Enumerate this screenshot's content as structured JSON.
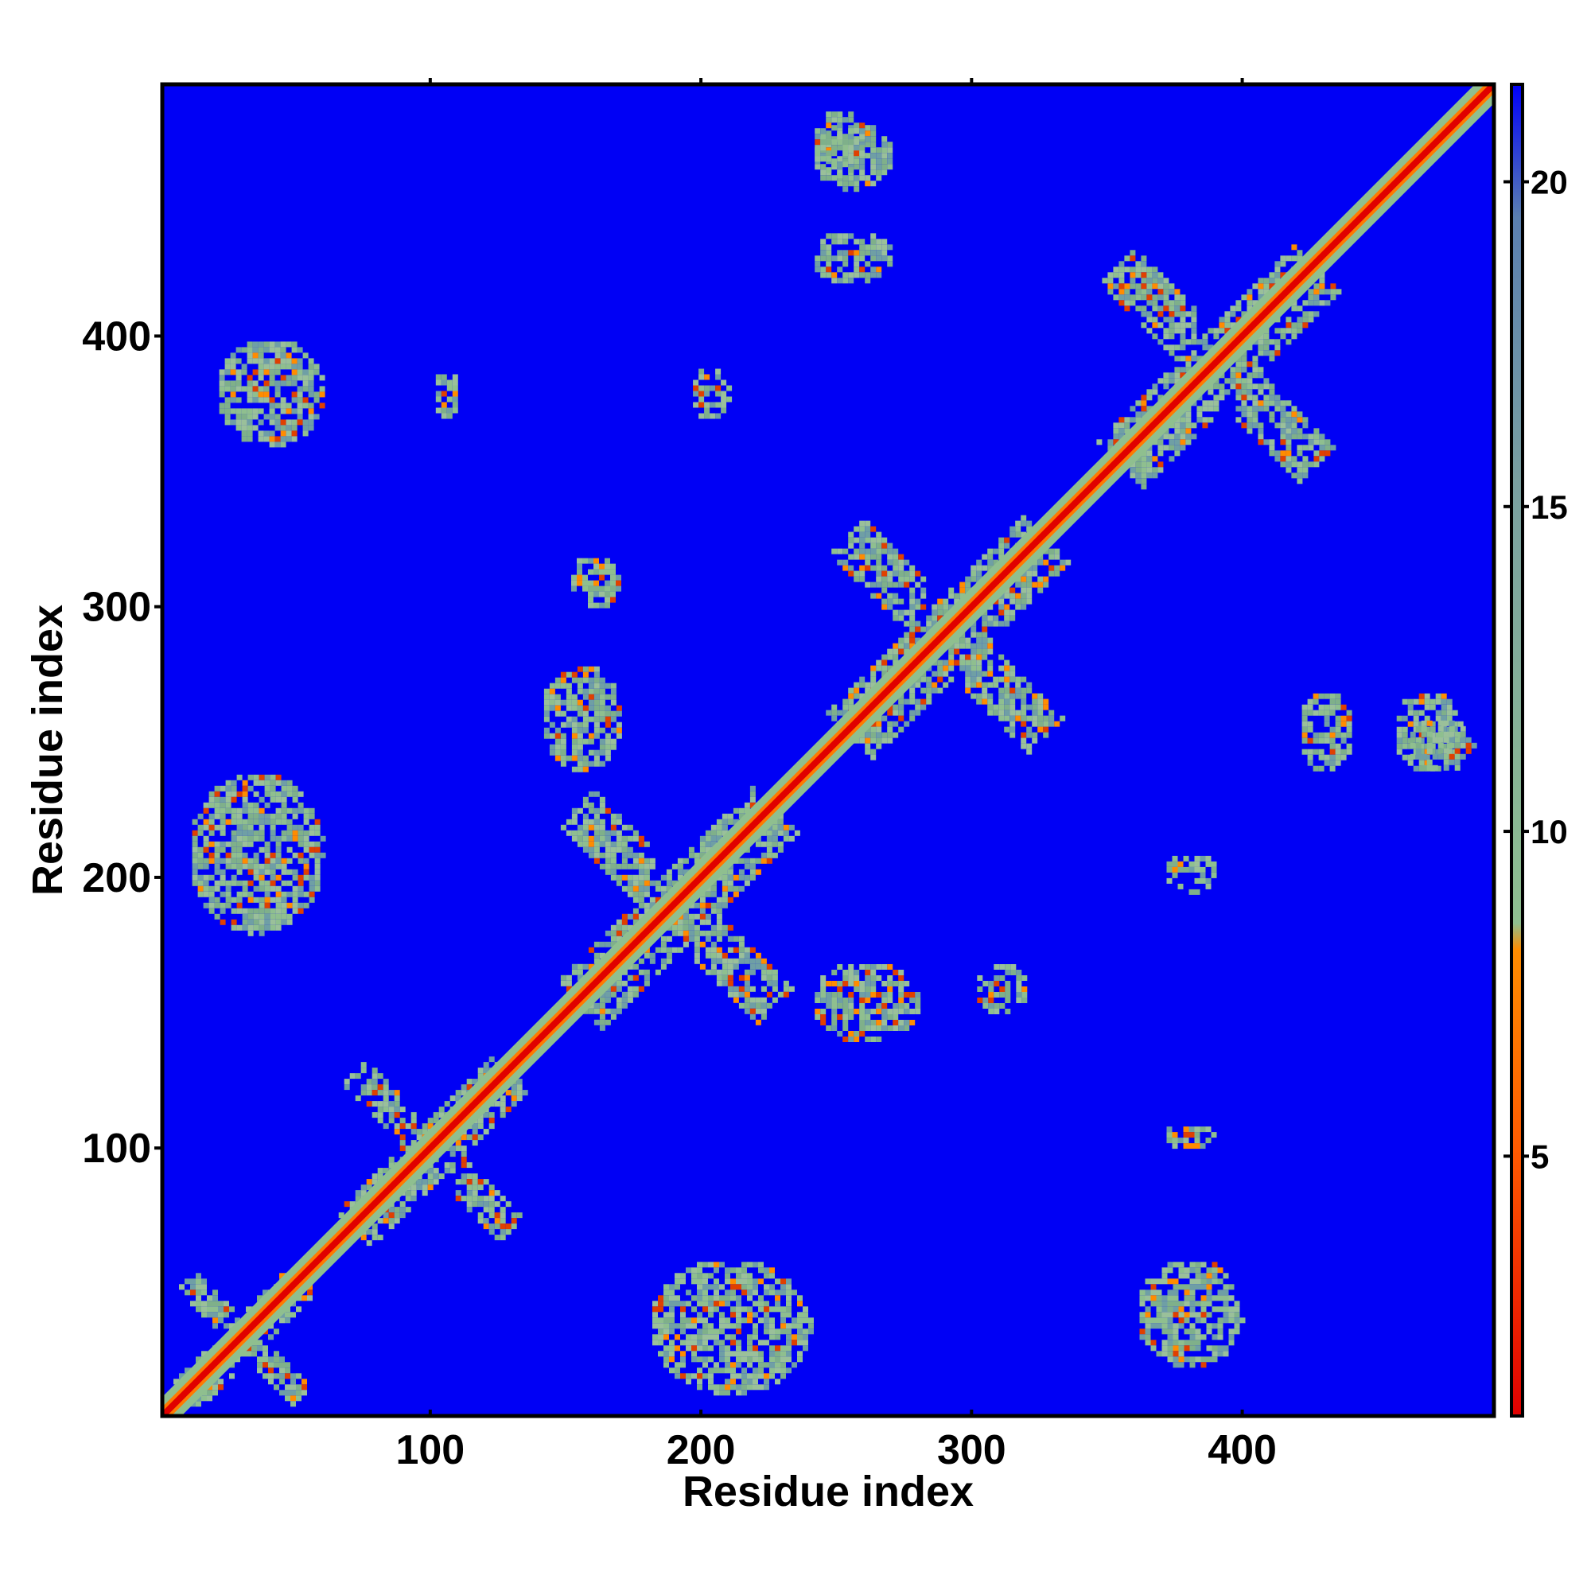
{
  "chart_data": {
    "type": "heatmap",
    "title": "",
    "xlabel": "Residue index",
    "ylabel": "Residue index",
    "xlim": [
      1,
      493
    ],
    "ylim": [
      1,
      493
    ],
    "x_ticks": [
      "100",
      "200",
      "300",
      "400"
    ],
    "y_ticks": [
      "100",
      "200",
      "300",
      "400"
    ],
    "x_tick_values": [
      100,
      200,
      300,
      400
    ],
    "y_tick_values": [
      100,
      200,
      300,
      400
    ],
    "colorbar": {
      "range": [
        1,
        21.5
      ],
      "ticks": [
        "5",
        "10",
        "15",
        "20"
      ],
      "tick_values": [
        5,
        10,
        15,
        20
      ],
      "colors": [
        "#e00000",
        "#ff7f00",
        "#8fbf8f",
        "#5a7fb0",
        "#0000f8"
      ]
    },
    "background_color": "#0000f5",
    "diagonal_color": "#e00000",
    "contact_regions": [
      {
        "x": [
          1,
          60
        ],
        "y": [
          1,
          60
        ],
        "pattern": "diagonal-cross"
      },
      {
        "x": [
          60,
          140
        ],
        "y": [
          60,
          140
        ],
        "pattern": "diagonal-cross"
      },
      {
        "x": [
          140,
          240
        ],
        "y": [
          140,
          240
        ],
        "pattern": "diagonal-cross"
      },
      {
        "x": [
          240,
          340
        ],
        "y": [
          240,
          340
        ],
        "pattern": "diagonal-cross"
      },
      {
        "x": [
          340,
          440
        ],
        "y": [
          340,
          440
        ],
        "pattern": "diagonal-cross"
      },
      {
        "x": [
          180,
          240
        ],
        "y": [
          10,
          60
        ],
        "pattern": "blob"
      },
      {
        "x": [
          10,
          60
        ],
        "y": [
          180,
          240
        ],
        "pattern": "blob"
      },
      {
        "x": [
          360,
          400
        ],
        "y": [
          20,
          60
        ],
        "pattern": "blob"
      },
      {
        "x": [
          20,
          60
        ],
        "y": [
          360,
          400
        ],
        "pattern": "blob"
      },
      {
        "x": [
          240,
          280
        ],
        "y": [
          140,
          170
        ],
        "pattern": "blob"
      },
      {
        "x": [
          140,
          170
        ],
        "y": [
          240,
          280
        ],
        "pattern": "blob"
      },
      {
        "x": [
          300,
          320
        ],
        "y": [
          150,
          170
        ],
        "pattern": "blob"
      },
      {
        "x": [
          150,
          170
        ],
        "y": [
          300,
          320
        ],
        "pattern": "blob"
      },
      {
        "x": [
          420,
          440
        ],
        "y": [
          240,
          270
        ],
        "pattern": "blob"
      },
      {
        "x": [
          240,
          270
        ],
        "y": [
          420,
          440
        ],
        "pattern": "blob"
      },
      {
        "x": [
          455,
          480
        ],
        "y": [
          240,
          270
        ],
        "pattern": "blob"
      },
      {
        "x": [
          240,
          270
        ],
        "y": [
          455,
          480
        ],
        "pattern": "blob"
      },
      {
        "x": [
          370,
          390
        ],
        "y": [
          195,
          210
        ],
        "pattern": "blob"
      },
      {
        "x": [
          195,
          210
        ],
        "y": [
          370,
          390
        ],
        "pattern": "blob"
      },
      {
        "x": [
          100,
          110
        ],
        "y": [
          370,
          390
        ],
        "pattern": "blob"
      },
      {
        "x": [
          370,
          390
        ],
        "y": [
          100,
          110
        ],
        "pattern": "blob"
      },
      {
        "x": [
          240,
          260
        ],
        "y": [
          460,
          485
        ],
        "pattern": "blob"
      },
      {
        "x": [
          460,
          485
        ],
        "y": [
          240,
          260
        ],
        "pattern": "blob"
      }
    ]
  }
}
